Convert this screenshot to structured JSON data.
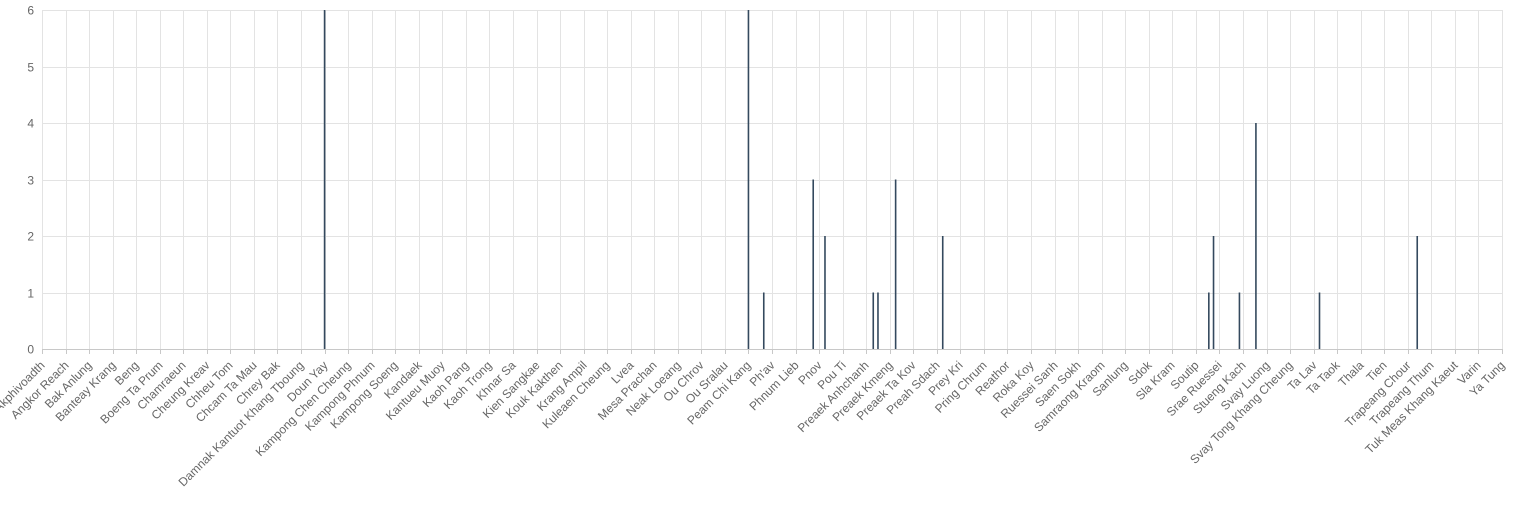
{
  "chart_data": {
    "type": "bar",
    "title": "",
    "xlabel": "",
    "ylabel": "",
    "ylim": [
      0,
      6
    ],
    "yticks": [
      0,
      1,
      2,
      3,
      4,
      5,
      6
    ],
    "grid": true,
    "legend": "none",
    "colors": {
      "bar": "#34495e",
      "grid": "#e3e3e3",
      "text": "#666666"
    },
    "categories": [
      "Akphivoadth",
      "Angkor Reach",
      "Bak Anlung",
      "Banteay Krang",
      "Beng",
      "Boeng Ta Prum",
      "Chamraeun",
      "Cheung Kreav",
      "Chheu Tom",
      "Chcam Ta Mau",
      "Chrey Bak",
      "Damnak Kantuot Khang Tboung",
      "Doun Yay",
      "Kampong Chen Cheung",
      "Kampong Phnum",
      "Kampong Soeng",
      "Kandaek",
      "Kantueu Muoy",
      "Kaoh Pang",
      "Kaoh Trong",
      "Khnar Sa",
      "Kien Sangkae",
      "Kouk Kakthen",
      "Krang Ampil",
      "Kuleaen Cheung",
      "Lvea",
      "Mesa Prachan",
      "Neak Loeang",
      "Ou Chrov",
      "Ou Sralau",
      "Peam Chi Kang",
      "Ph'av",
      "Phnum Lieb",
      "Pnov",
      "Pou Ti",
      "Preaek Anhchanh",
      "Preaek Kmeng",
      "Preaek Ta Kov",
      "Preah Sdach",
      "Prey Kri",
      "Pring Chrum",
      "Reathor",
      "Roka Koy",
      "Ruessei Sanh",
      "Saen Sokh",
      "Samraong Kraom",
      "Sanlung",
      "Sdok",
      "Sla Kram",
      "Soutip",
      "Srae Ruessei",
      "Stueng Kach",
      "Svay Luong",
      "Svay Tong Khang Cheung",
      "Ta Lav",
      "Ta Taok",
      "Thala",
      "Tien",
      "Trapeang Chour",
      "Trapeang Thum",
      "Tuk Meas Khang Kaeut",
      "Varin",
      "Ya Tung"
    ],
    "bars": [
      {
        "x": 12.0,
        "value": 6
      },
      {
        "x": 30.0,
        "value": 6
      },
      {
        "x": 30.65,
        "value": 1
      },
      {
        "x": 32.75,
        "value": 3
      },
      {
        "x": 33.25,
        "value": 2
      },
      {
        "x": 35.3,
        "value": 1
      },
      {
        "x": 35.5,
        "value": 1
      },
      {
        "x": 36.25,
        "value": 3
      },
      {
        "x": 38.25,
        "value": 2
      },
      {
        "x": 49.55,
        "value": 1
      },
      {
        "x": 49.75,
        "value": 2
      },
      {
        "x": 50.85,
        "value": 1
      },
      {
        "x": 51.55,
        "value": 4
      },
      {
        "x": 54.25,
        "value": 1
      },
      {
        "x": 58.4,
        "value": 2
      }
    ]
  }
}
